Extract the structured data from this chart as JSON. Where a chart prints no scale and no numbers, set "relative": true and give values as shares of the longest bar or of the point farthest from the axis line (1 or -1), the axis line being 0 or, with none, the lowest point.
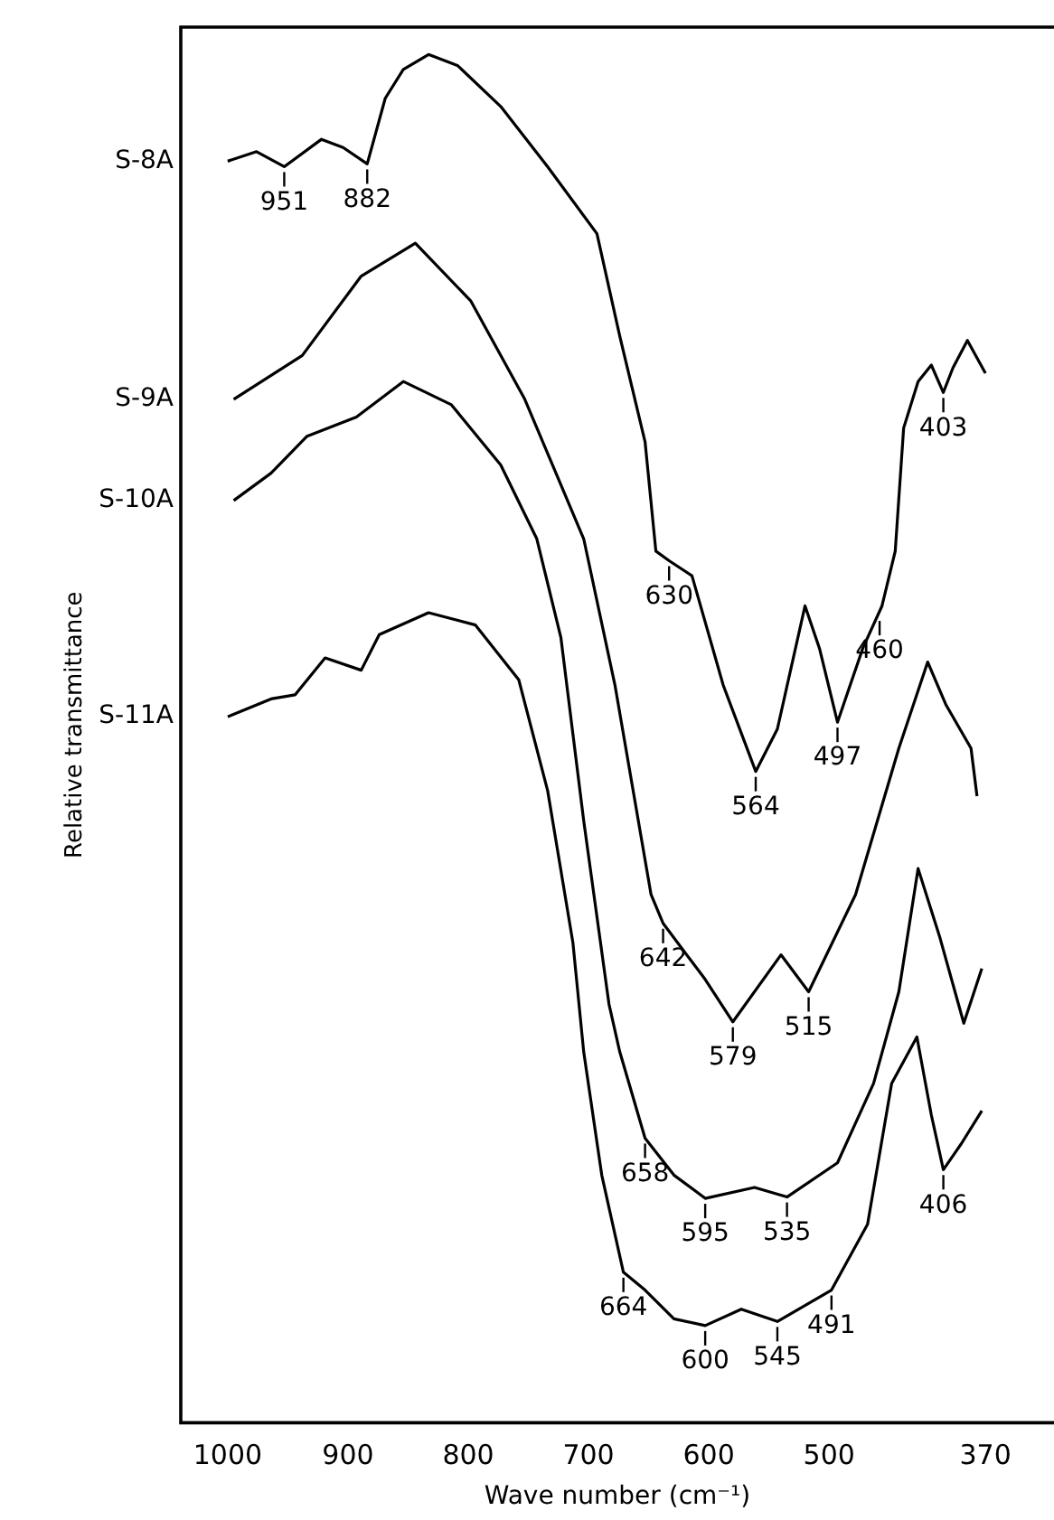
{
  "chart_data": {
    "type": "line",
    "xlabel": "Wave number (cm⁻¹)",
    "ylabel": "Relative transmittance",
    "relative": true,
    "xlim": [
      1039,
      313
    ],
    "xticks": [
      1000,
      900,
      800,
      700,
      600,
      500,
      370
    ],
    "grid": false,
    "legend": false,
    "marker": "none",
    "line_style": "solid",
    "series": [
      {
        "name": "S-8A",
        "color": "#000000",
        "x": [
          1000,
          976,
          953,
          922,
          904,
          884,
          869,
          854,
          833,
          809,
          773,
          734,
          693,
          674,
          653,
          644,
          633,
          614,
          588,
          561,
          543,
          520,
          508,
          493,
          472,
          456,
          445,
          438,
          426,
          415,
          405,
          397,
          385,
          370
        ],
        "values": [
          0.922,
          0.929,
          0.918,
          0.938,
          0.932,
          0.92,
          0.968,
          0.989,
          1.0,
          0.992,
          0.962,
          0.918,
          0.869,
          0.794,
          0.717,
          0.637,
          0.63,
          0.619,
          0.539,
          0.476,
          0.507,
          0.597,
          0.566,
          0.512,
          0.566,
          0.597,
          0.637,
          0.727,
          0.761,
          0.773,
          0.753,
          0.771,
          0.791,
          0.767
        ]
      },
      {
        "name": "S-9A",
        "color": "#000000",
        "x": [
          995,
          938,
          889,
          844,
          798,
          753,
          704,
          678,
          648,
          638,
          603,
          580,
          540,
          517,
          478,
          442,
          418,
          403,
          382,
          377
        ],
        "values": [
          0.748,
          0.78,
          0.838,
          0.862,
          0.82,
          0.748,
          0.646,
          0.539,
          0.386,
          0.365,
          0.324,
          0.293,
          0.342,
          0.315,
          0.386,
          0.493,
          0.556,
          0.525,
          0.493,
          0.458
        ]
      },
      {
        "name": "S-10A",
        "color": "#000000",
        "x": [
          995,
          964,
          934,
          893,
          854,
          814,
          773,
          743,
          723,
          704,
          683,
          674,
          653,
          629,
          603,
          562,
          535,
          493,
          463,
          442,
          426,
          408,
          388,
          373
        ],
        "values": [
          0.674,
          0.694,
          0.721,
          0.735,
          0.761,
          0.744,
          0.7,
          0.646,
          0.574,
          0.44,
          0.306,
          0.271,
          0.208,
          0.181,
          0.164,
          0.172,
          0.165,
          0.19,
          0.248,
          0.315,
          0.405,
          0.355,
          0.292,
          0.332
        ]
      },
      {
        "name": "S-11A",
        "color": "#000000",
        "x": [
          1000,
          964,
          944,
          919,
          889,
          874,
          833,
          794,
          758,
          734,
          713,
          704,
          689,
          671,
          653,
          629,
          603,
          573,
          543,
          498,
          468,
          448,
          427,
          415,
          405,
          390,
          373
        ],
        "values": [
          0.516,
          0.529,
          0.532,
          0.559,
          0.55,
          0.576,
          0.592,
          0.583,
          0.543,
          0.462,
          0.351,
          0.271,
          0.181,
          0.11,
          0.097,
          0.076,
          0.071,
          0.083,
          0.074,
          0.097,
          0.145,
          0.248,
          0.282,
          0.225,
          0.185,
          0.204,
          0.228
        ]
      }
    ],
    "annotations": [
      {
        "text": "951",
        "x": 953,
        "y": 0.918
      },
      {
        "text": "882",
        "x": 884,
        "y": 0.92
      },
      {
        "text": "630",
        "x": 633,
        "y": 0.63
      },
      {
        "text": "564",
        "x": 561,
        "y": 0.476
      },
      {
        "text": "497",
        "x": 493,
        "y": 0.512
      },
      {
        "text": "460",
        "x": 458,
        "y": 0.59
      },
      {
        "text": "403",
        "x": 405,
        "y": 0.753
      },
      {
        "text": "642",
        "x": 638,
        "y": 0.365
      },
      {
        "text": "579",
        "x": 580,
        "y": 0.293
      },
      {
        "text": "515",
        "x": 517,
        "y": 0.315
      },
      {
        "text": "658",
        "x": 653,
        "y": 0.208
      },
      {
        "text": "595",
        "x": 603,
        "y": 0.164
      },
      {
        "text": "535",
        "x": 535,
        "y": 0.165
      },
      {
        "text": "406",
        "x": 405,
        "y": 0.185
      },
      {
        "text": "664",
        "x": 671,
        "y": 0.11
      },
      {
        "text": "600",
        "x": 603,
        "y": 0.071
      },
      {
        "text": "545",
        "x": 543,
        "y": 0.074
      },
      {
        "text": "491",
        "x": 498,
        "y": 0.097
      }
    ]
  }
}
